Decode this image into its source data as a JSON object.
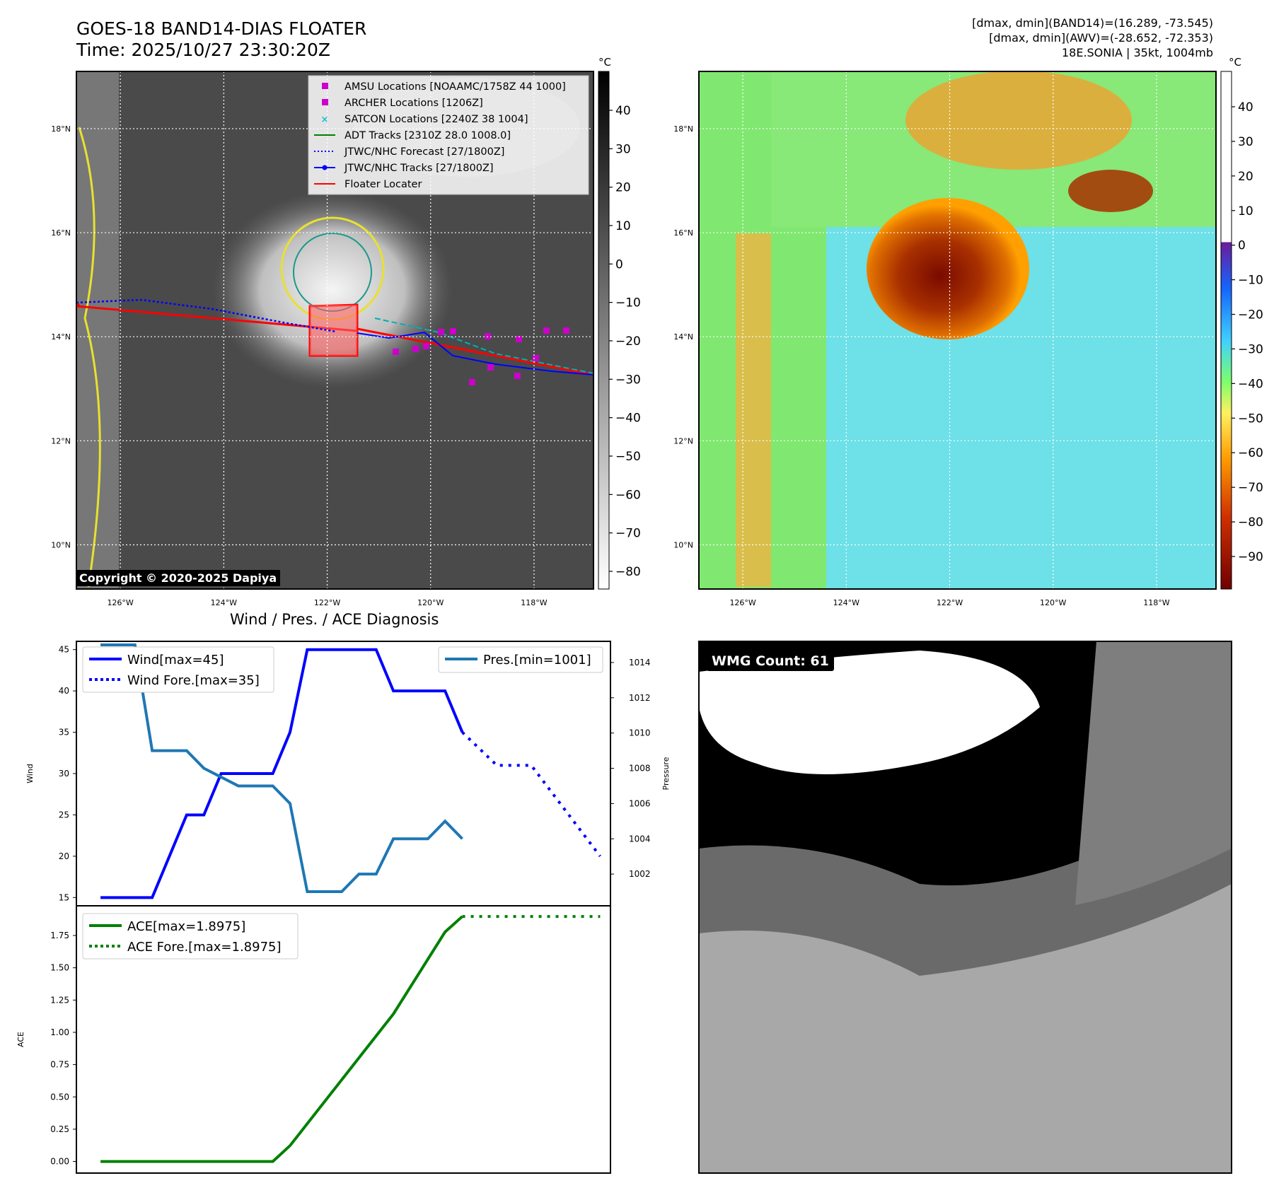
{
  "header": {
    "title_line1": "GOES-18 BAND14-DIAS FLOATER",
    "title_line2": "Time: 2025/10/27 23:30:20Z",
    "info_line1": "[dmax, dmin](BAND14)=(16.289, -73.545)",
    "info_line2": "[dmax, dmin](AWV)=(-28.652, -72.353)",
    "info_line3": "18E.SONIA | 35kt, 1004mb"
  },
  "maps": {
    "lat_labels": [
      "18°N",
      "16°N",
      "14°N",
      "12°N",
      "10°N"
    ],
    "lon_labels": [
      "126°W",
      "124°W",
      "122°W",
      "120°W",
      "118°W"
    ],
    "lat_values": [
      18,
      16,
      14,
      12,
      10
    ],
    "lon_values": [
      -126,
      -124,
      -122,
      -120,
      -118
    ],
    "copyright": "Copyright © 2020-2025 Dapiya",
    "left_colorbar": {
      "unit": "°C",
      "ticks": [
        "40",
        "30",
        "20",
        "10",
        "0",
        "−10",
        "−20",
        "−30",
        "−40",
        "−50",
        "−60",
        "−70",
        "−80"
      ]
    },
    "right_colorbar": {
      "unit": "°C",
      "ticks": [
        "40",
        "30",
        "20",
        "10",
        "0",
        "−10",
        "−20",
        "−30",
        "−40",
        "−50",
        "−60",
        "−70",
        "−80",
        "−90"
      ]
    },
    "legend": [
      {
        "label": "AMSU Locations [NOAAMC/1758Z 44 1000]",
        "color": "#cc00cc",
        "marker": "square"
      },
      {
        "label": "ARCHER Locations [1206Z]",
        "color": "#cc00cc",
        "marker": "square"
      },
      {
        "label": "SATCON Locations [2240Z 38 1004]",
        "color": "#17becf",
        "marker": "x"
      },
      {
        "label": "ADT Tracks [2310Z 28.0 1008.0]",
        "color": "#008000",
        "marker": "line"
      },
      {
        "label": "JTWC/NHC Forecast [27/1800Z]",
        "color": "#0000ff",
        "marker": "dotted"
      },
      {
        "label": "JTWC/NHC Tracks [27/1800Z]",
        "color": "#0000ff",
        "marker": "line-dot"
      },
      {
        "label": "Floater Locater",
        "color": "#ff0000",
        "marker": "line"
      }
    ]
  },
  "diagnosis": {
    "title": "Wind / Pres. / ACE Diagnosis",
    "wind_axis_label": "Wind",
    "pressure_axis_label": "Pressure",
    "ace_axis_label": "ACE",
    "legend_wind": "Wind[max=45]",
    "legend_wind_fore": "Wind Fore.[max=35]",
    "legend_pres": "Pres.[min=1001]",
    "legend_ace": "ACE[max=1.8975]",
    "legend_ace_fore": "ACE Fore.[max=1.8975]"
  },
  "wmg": {
    "label": "WMG Count: 61"
  },
  "chart_data": [
    {
      "type": "line",
      "title": "Wind / Pres. / ACE Diagnosis",
      "ylabel": "Wind",
      "y2label": "Pressure",
      "ylim": [
        14,
        46
      ],
      "y2lim": [
        1000.2,
        1015.2
      ],
      "yticks": [
        15,
        20,
        25,
        30,
        35,
        40,
        45
      ],
      "y2ticks": [
        1002,
        1004,
        1006,
        1008,
        1010,
        1012,
        1014
      ],
      "series": [
        {
          "name": "Wind[max=45]",
          "color": "#0000ff",
          "style": "solid",
          "x": [
            0,
            3,
            5,
            6,
            7,
            10,
            11,
            12,
            13,
            16,
            17,
            18,
            19,
            20,
            21
          ],
          "y": [
            15,
            15,
            25,
            25,
            30,
            30,
            35,
            45,
            45,
            45,
            40,
            40,
            40,
            40,
            35
          ]
        },
        {
          "name": "Wind Fore.[max=35]",
          "color": "#0000ff",
          "style": "dotted",
          "x": [
            21,
            23,
            25,
            29
          ],
          "y": [
            35,
            31,
            31,
            20
          ]
        },
        {
          "name": "Pres.[min=1001]",
          "color": "#1f77b4",
          "style": "solid",
          "axis": "y2",
          "x": [
            0,
            2,
            3,
            5,
            6,
            8,
            10,
            11,
            12,
            13,
            14,
            15,
            16,
            17,
            18,
            19,
            20,
            21
          ],
          "y": [
            1015,
            1015,
            1009,
            1009,
            1008,
            1007,
            1007,
            1006,
            1001,
            1001,
            1001,
            1002,
            1002,
            1004,
            1004,
            1004,
            1005,
            1004
          ]
        }
      ]
    },
    {
      "type": "line",
      "ylabel": "ACE",
      "ylim": [
        -0.09,
        1.98
      ],
      "yticks": [
        "0.00",
        "0.25",
        "0.50",
        "0.75",
        "1.00",
        "1.25",
        "1.50",
        "1.75"
      ],
      "series": [
        {
          "name": "ACE[max=1.8975]",
          "color": "#008000",
          "style": "solid",
          "x": [
            0,
            10,
            11,
            17,
            20,
            21
          ],
          "y": [
            0,
            0,
            0.1225,
            1.1425,
            1.7775,
            1.8975
          ]
        },
        {
          "name": "ACE Fore.[max=1.8975]",
          "color": "#008000",
          "style": "dotted",
          "x": [
            21,
            29
          ],
          "y": [
            1.8975,
            1.8975
          ]
        }
      ]
    }
  ]
}
